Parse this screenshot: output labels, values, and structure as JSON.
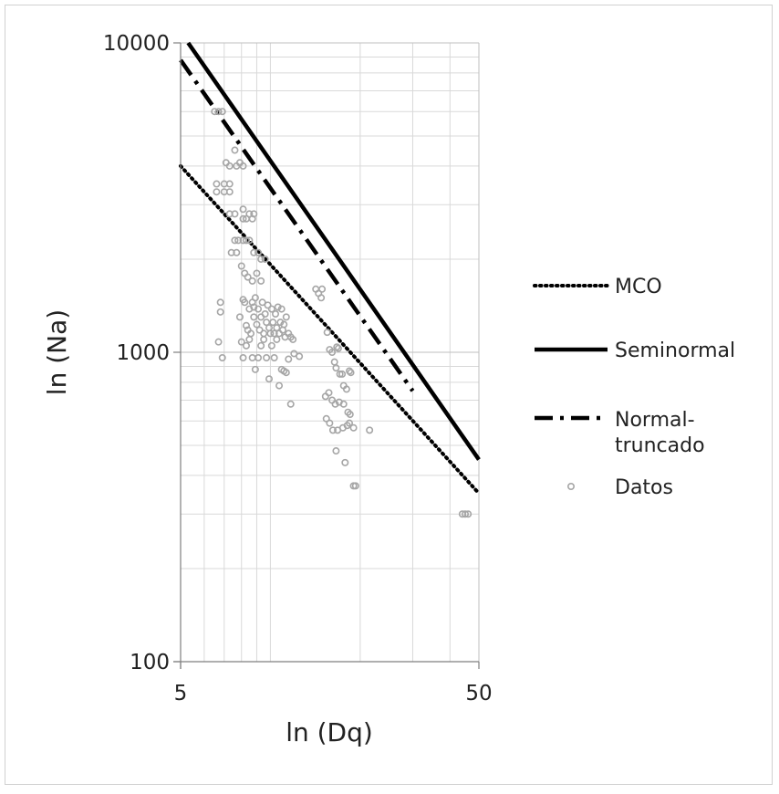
{
  "chart_data": {
    "type": "scatter",
    "title": "",
    "xlabel": "ln (Dq)",
    "ylabel": "ln (Na)",
    "xscale": "log",
    "yscale": "log",
    "xlim": [
      5,
      50
    ],
    "ylim": [
      100,
      10000
    ],
    "x_tick_labels": [
      "5",
      "50"
    ],
    "y_tick_labels": [
      "100",
      "1000",
      "10000"
    ],
    "grid": true,
    "legend_position": "right",
    "series": [
      {
        "name": "MCO",
        "style": "dotted",
        "color": "#000000",
        "points": [
          [
            5,
            4000
          ],
          [
            50,
            350
          ]
        ]
      },
      {
        "name": "Seminormal",
        "style": "solid",
        "color": "#000000",
        "points": [
          [
            5.3,
            10000
          ],
          [
            50,
            450
          ]
        ]
      },
      {
        "name": "Normal-truncado",
        "legend_lines": [
          "Normal-",
          "truncado"
        ],
        "style": "dashdot",
        "color": "#000000",
        "points": [
          [
            5,
            8800
          ],
          [
            30,
            750
          ]
        ]
      },
      {
        "name": "Datos",
        "style": "markers",
        "color": "#a6a6a6",
        "points": [
          [
            6.5,
            6000
          ],
          [
            6.7,
            6000
          ],
          [
            6.9,
            6000
          ],
          [
            6.6,
            3300
          ],
          [
            6.6,
            3500
          ],
          [
            7.0,
            3300
          ],
          [
            7.0,
            3500
          ],
          [
            7.3,
            3300
          ],
          [
            7.3,
            3500
          ],
          [
            7.1,
            4100
          ],
          [
            7.3,
            4000
          ],
          [
            7.7,
            4000
          ],
          [
            7.6,
            4500
          ],
          [
            7.9,
            4100
          ],
          [
            8.1,
            4000
          ],
          [
            7.3,
            2800
          ],
          [
            7.6,
            2800
          ],
          [
            8.1,
            2700
          ],
          [
            8.1,
            2900
          ],
          [
            8.3,
            2700
          ],
          [
            8.5,
            2800
          ],
          [
            8.7,
            2700
          ],
          [
            8.8,
            2800
          ],
          [
            7.6,
            2300
          ],
          [
            7.8,
            2300
          ],
          [
            8.1,
            2300
          ],
          [
            8.3,
            2300
          ],
          [
            8.5,
            2300
          ],
          [
            8.8,
            2100
          ],
          [
            9.1,
            2100
          ],
          [
            9.3,
            2000
          ],
          [
            9.6,
            2000
          ],
          [
            7.4,
            2100
          ],
          [
            7.7,
            2100
          ],
          [
            8.0,
            1900
          ],
          [
            8.2,
            1800
          ],
          [
            8.4,
            1750
          ],
          [
            8.7,
            1700
          ],
          [
            9.0,
            1800
          ],
          [
            9.3,
            1700
          ],
          [
            6.8,
            1450
          ],
          [
            6.8,
            1350
          ],
          [
            6.7,
            1080
          ],
          [
            6.9,
            960
          ],
          [
            7.9,
            1300
          ],
          [
            8.0,
            1080
          ],
          [
            8.1,
            1480
          ],
          [
            8.2,
            1450
          ],
          [
            8.3,
            1220
          ],
          [
            8.4,
            1180
          ],
          [
            8.5,
            1380
          ],
          [
            8.6,
            1150
          ],
          [
            8.7,
            1450
          ],
          [
            8.8,
            1400
          ],
          [
            8.8,
            1300
          ],
          [
            8.9,
            1500
          ],
          [
            9.0,
            1230
          ],
          [
            9.1,
            1380
          ],
          [
            9.2,
            1180
          ],
          [
            9.3,
            1300
          ],
          [
            9.4,
            1450
          ],
          [
            9.5,
            1150
          ],
          [
            9.6,
            1330
          ],
          [
            9.7,
            1250
          ],
          [
            9.8,
            1420
          ],
          [
            9.9,
            1200
          ],
          [
            10.0,
            1150
          ],
          [
            10.1,
            1380
          ],
          [
            10.2,
            1250
          ],
          [
            10.3,
            1150
          ],
          [
            10.4,
            1330
          ],
          [
            10.5,
            1200
          ],
          [
            10.6,
            1400
          ],
          [
            10.7,
            1150
          ],
          [
            10.8,
            1250
          ],
          [
            10.9,
            1380
          ],
          [
            11.0,
            1180
          ],
          [
            11.1,
            1230
          ],
          [
            11.2,
            1120
          ],
          [
            11.3,
            1300
          ],
          [
            11.5,
            1150
          ],
          [
            11.7,
            1120
          ],
          [
            11.9,
            1100
          ],
          [
            8.1,
            960
          ],
          [
            8.3,
            1050
          ],
          [
            8.5,
            1100
          ],
          [
            8.7,
            960
          ],
          [
            8.9,
            880
          ],
          [
            9.1,
            960
          ],
          [
            9.3,
            1050
          ],
          [
            9.5,
            1100
          ],
          [
            9.7,
            960
          ],
          [
            9.9,
            820
          ],
          [
            10.1,
            1050
          ],
          [
            10.3,
            960
          ],
          [
            10.5,
            1100
          ],
          [
            10.7,
            780
          ],
          [
            10.9,
            880
          ],
          [
            11.1,
            870
          ],
          [
            11.3,
            860
          ],
          [
            11.5,
            950
          ],
          [
            11.7,
            680
          ],
          [
            12.0,
            990
          ],
          [
            12.5,
            970
          ],
          [
            14.2,
            1600
          ],
          [
            14.5,
            1550
          ],
          [
            14.8,
            1500
          ],
          [
            14.9,
            1600
          ],
          [
            15.5,
            1160
          ],
          [
            15.8,
            1020
          ],
          [
            16.1,
            1000
          ],
          [
            16.4,
            930
          ],
          [
            16.6,
            890
          ],
          [
            16.7,
            1040
          ],
          [
            16.9,
            1030
          ],
          [
            17.1,
            850
          ],
          [
            17.4,
            850
          ],
          [
            17.6,
            780
          ],
          [
            18.0,
            760
          ],
          [
            18.4,
            870
          ],
          [
            18.6,
            860
          ],
          [
            15.3,
            720
          ],
          [
            15.7,
            740
          ],
          [
            16.1,
            700
          ],
          [
            16.5,
            680
          ],
          [
            17.0,
            690
          ],
          [
            17.6,
            680
          ],
          [
            18.2,
            640
          ],
          [
            18.5,
            630
          ],
          [
            15.4,
            610
          ],
          [
            15.8,
            590
          ],
          [
            16.2,
            560
          ],
          [
            16.8,
            560
          ],
          [
            17.5,
            570
          ],
          [
            18.1,
            580
          ],
          [
            18.4,
            590
          ],
          [
            19.0,
            570
          ],
          [
            21.5,
            560
          ],
          [
            16.6,
            480
          ],
          [
            17.8,
            440
          ],
          [
            19.0,
            370
          ],
          [
            19.3,
            370
          ],
          [
            44.0,
            300
          ],
          [
            45.0,
            300
          ],
          [
            46.0,
            300
          ]
        ]
      }
    ]
  }
}
